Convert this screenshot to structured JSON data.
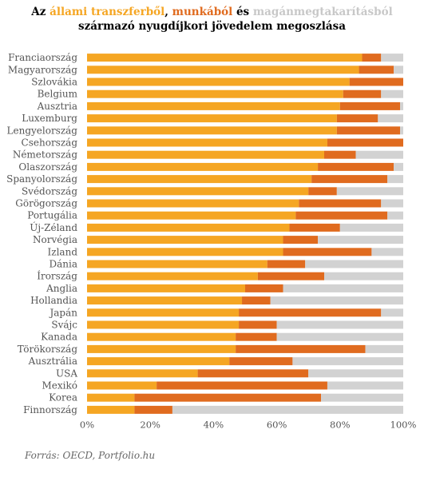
{
  "title": {
    "prefix": "Az",
    "state": "állami transzferből",
    "sep": ",",
    "work": "munkából",
    "and": "és",
    "priv": "magánmegtakarításból",
    "line2": "származó nyugdíjkori jövedelem megoszlása"
  },
  "source": "Forrás: OECD, Portfolio.hu",
  "colors": {
    "state": "#f5a623",
    "work": "#e06b1f",
    "priv": "#d2d2d2"
  },
  "chart_data": {
    "type": "bar",
    "orientation": "horizontal",
    "stacked": true,
    "percent_stacked": true,
    "xlim": [
      0,
      100
    ],
    "x_ticks": [
      "0%",
      "20%",
      "40%",
      "60%",
      "80%",
      "100%"
    ],
    "categories": [
      "Franciaország",
      "Magyarország",
      "Szlovákia",
      "Belgium",
      "Ausztria",
      "Luxemburg",
      "Lengyelország",
      "Csehország",
      "Németország",
      "Olaszország",
      "Spanyolország",
      "Svédország",
      "Görögország",
      "Portugália",
      "Új-Zéland",
      "Norvégia",
      "Izland",
      "Dánia",
      "Írország",
      "Anglia",
      "Hollandia",
      "Japán",
      "Svájc",
      "Kanada",
      "Törökország",
      "Ausztrália",
      "USA",
      "Mexikó",
      "Korea",
      "Finnország"
    ],
    "series": [
      {
        "name": "állami transzferből",
        "values": [
          87,
          86,
          83,
          81,
          80,
          79,
          79,
          76,
          75,
          73,
          71,
          70,
          67,
          66,
          64,
          62,
          62,
          57,
          54,
          50,
          49,
          48,
          48,
          47,
          47,
          45,
          35,
          22,
          15,
          15
        ]
      },
      {
        "name": "munkából",
        "values": [
          6,
          11,
          17,
          12,
          19,
          13,
          20,
          24,
          10,
          24,
          24,
          9,
          26,
          29,
          16,
          11,
          28,
          12,
          21,
          12,
          9,
          45,
          12,
          13,
          41,
          20,
          35,
          54,
          59,
          12
        ]
      },
      {
        "name": "magánmegtakarításból",
        "values": [
          7,
          3,
          0,
          7,
          1,
          8,
          1,
          0,
          15,
          3,
          5,
          21,
          7,
          5,
          20,
          27,
          10,
          31,
          25,
          38,
          42,
          7,
          40,
          40,
          12,
          35,
          30,
          24,
          26,
          73
        ]
      }
    ]
  }
}
